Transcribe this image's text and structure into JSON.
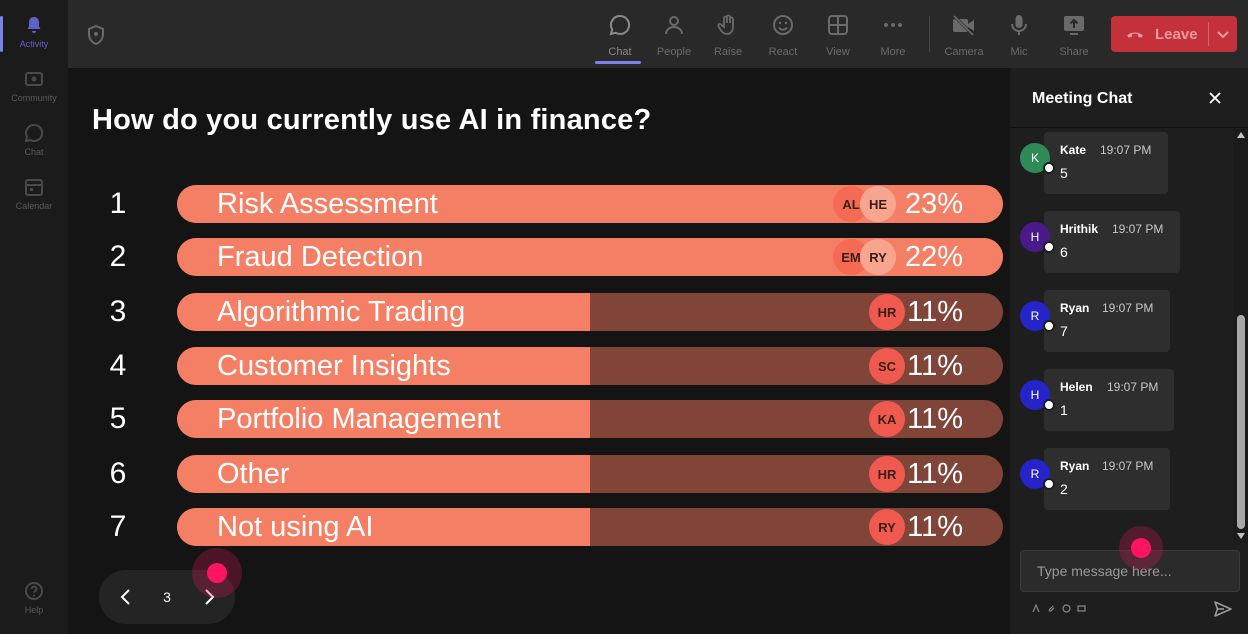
{
  "rail": {
    "items": [
      {
        "label": "Activity",
        "icon": "bell-icon",
        "active": true
      },
      {
        "label": "Community",
        "icon": "community-icon",
        "active": false
      },
      {
        "label": "Chat",
        "icon": "chat-icon",
        "active": false
      },
      {
        "label": "Calendar",
        "icon": "calendar-icon",
        "active": false
      }
    ],
    "help": {
      "label": "Help",
      "icon": "help-icon"
    }
  },
  "toolbar": {
    "chat": "Chat",
    "people": "People",
    "raise": "Raise",
    "react": "React",
    "view": "View",
    "more": "More",
    "camera": "Camera",
    "mic": "Mic",
    "share": "Share",
    "leave": "Leave"
  },
  "poll": {
    "question": "How do you currently use AI in finance?",
    "options": [
      {
        "num": "1",
        "label": "Risk Assessment",
        "percent": 23,
        "percent_text": "23%",
        "voters": [
          "AL",
          "HE"
        ]
      },
      {
        "num": "2",
        "label": "Fraud Detection",
        "percent": 22,
        "percent_text": "22%",
        "voters": [
          "EM",
          "RY"
        ]
      },
      {
        "num": "3",
        "label": "Algorithmic Trading",
        "percent": 11,
        "percent_text": "11%",
        "voters": [
          "HR"
        ]
      },
      {
        "num": "4",
        "label": "Customer Insights",
        "percent": 11,
        "percent_text": "11%",
        "voters": [
          "SC"
        ]
      },
      {
        "num": "5",
        "label": "Portfolio Management",
        "percent": 11,
        "percent_text": "11%",
        "voters": [
          "KA"
        ]
      },
      {
        "num": "6",
        "label": "Other",
        "percent": 11,
        "percent_text": "11%",
        "voters": [
          "HR"
        ]
      },
      {
        "num": "7",
        "label": "Not using AI",
        "percent": 11,
        "percent_text": "11%",
        "voters": [
          "RY"
        ]
      }
    ],
    "page": "3"
  },
  "chat": {
    "title": "Meeting Chat",
    "messages": [
      {
        "initial": "K",
        "name": "Kate",
        "time": "19:07 PM",
        "text": "5",
        "color": "#2e8b57"
      },
      {
        "initial": "H",
        "name": "Hrithik",
        "time": "19:07 PM",
        "text": "6",
        "color": "#4b1a8a"
      },
      {
        "initial": "R",
        "name": "Ryan",
        "time": "19:07 PM",
        "text": "7",
        "color": "#2424c8"
      },
      {
        "initial": "H",
        "name": "Helen",
        "time": "19:07 PM",
        "text": "1",
        "color": "#2424c8"
      },
      {
        "initial": "R",
        "name": "Ryan",
        "time": "19:07 PM",
        "text": "2",
        "color": "#2424c8"
      }
    ],
    "input_placeholder": "Type message here..."
  },
  "colors": {
    "accent": "#7b83eb",
    "bar_fill": "#f57f65",
    "bar_track": "#804538",
    "leave": "#c4313b",
    "cursor": "#ff1464"
  }
}
